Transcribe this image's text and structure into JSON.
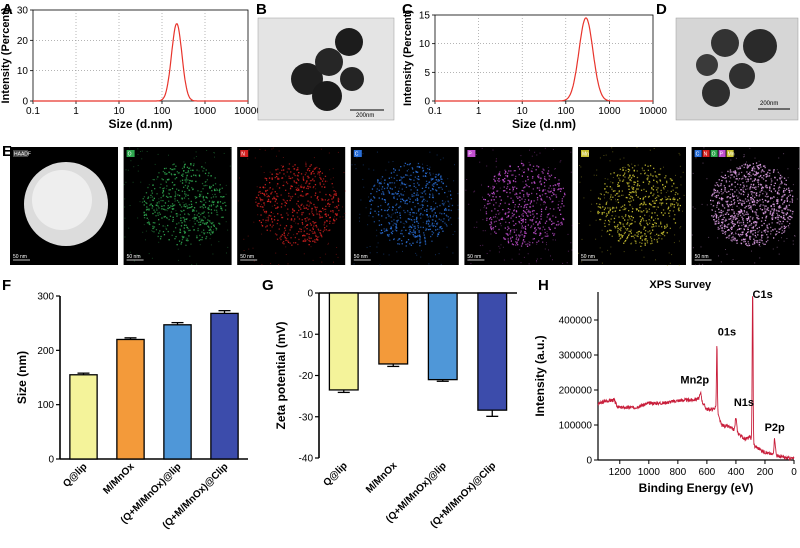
{
  "panels": {
    "A": "A",
    "B": "B",
    "C": "C",
    "D": "D",
    "E": "E",
    "F": "F",
    "G": "G",
    "H": "H"
  },
  "colors": {
    "line": "#e8342c",
    "xps": "#c81d3a",
    "bars": [
      "#f4f39a",
      "#f39a3a",
      "#4f97d8",
      "#3c4cab"
    ]
  },
  "tem": {
    "b_scale": "200nm",
    "d_scale": "200nm"
  },
  "eds": {
    "scale": "50 nm",
    "maps": [
      {
        "label": "HAADF",
        "color": "#bbbbbb"
      },
      {
        "label": "O",
        "color": "#2fa84f"
      },
      {
        "label": "N",
        "color": "#d42020"
      },
      {
        "label": "C",
        "color": "#2a6fd8"
      },
      {
        "label": "P",
        "color": "#c24fd0"
      },
      {
        "label": "Mn",
        "color": "#c8c030"
      },
      {
        "label": "Overlay",
        "color": "#e0a0e8"
      }
    ],
    "overlay_keys": [
      "C",
      "N",
      "O",
      "P",
      "Mn"
    ]
  },
  "chart_data": [
    {
      "id": "A",
      "type": "line",
      "xlabel": "Size (d.nm)",
      "ylabel": "Intensity (Percent)",
      "xscale": "log",
      "xlim": [
        0.1,
        10000
      ],
      "ylim": [
        0,
        30
      ],
      "xticks": [
        "0.1",
        "1",
        "10",
        "100",
        "1000",
        "10000"
      ],
      "yticks": [
        "0",
        "10",
        "20",
        "30"
      ],
      "peak_center": 220,
      "peak_height": 25.5,
      "peak_width_log10": 0.12
    },
    {
      "id": "C",
      "type": "line",
      "xlabel": "Size (d.nm)",
      "ylabel": "Intensity (Percent)",
      "xscale": "log",
      "xlim": [
        0.1,
        10000
      ],
      "ylim": [
        0,
        15
      ],
      "xticks": [
        "0.1",
        "1",
        "10",
        "100",
        "1000",
        "10000"
      ],
      "yticks": [
        "0",
        "5",
        "10",
        "15"
      ],
      "peak_center": 290,
      "peak_height": 14.5,
      "peak_width_log10": 0.16
    },
    {
      "id": "F",
      "type": "bar",
      "ylabel": "Size (nm)",
      "ylim": [
        0,
        300
      ],
      "yticks": [
        "0",
        "100",
        "200",
        "300"
      ],
      "categories": [
        "Q@lip",
        "M/MnOx",
        "(Q+M/MnOx)@lip",
        "(Q+M/MnOx)@Clip"
      ],
      "values": [
        155,
        220,
        247,
        268
      ],
      "errors": [
        3,
        3,
        4,
        5
      ]
    },
    {
      "id": "G",
      "type": "bar",
      "ylabel": "Zeta potential (mV)",
      "ylim": [
        -40,
        0
      ],
      "yticks": [
        "0",
        "-10",
        "-20",
        "-30",
        "-40"
      ],
      "categories": [
        "Q@lip",
        "M/MnOx",
        "(Q+M/MnOx)@lip",
        "(Q+M/MnOx)@Clip"
      ],
      "values": [
        -23.5,
        -17.2,
        -21.0,
        -28.4
      ],
      "errors": [
        0.6,
        0.6,
        0.4,
        1.5
      ]
    },
    {
      "id": "H",
      "type": "line",
      "title": "XPS Survey",
      "xlabel": "Binding Energy (eV)",
      "ylabel": "Intensity (a.u.)",
      "xlim": [
        1350,
        0
      ],
      "ylim": [
        0,
        480000
      ],
      "xticks": [
        "1200",
        "1000",
        "800",
        "600",
        "400",
        "200",
        "0"
      ],
      "yticks": [
        "0",
        "100000",
        "200000",
        "300000",
        "400000"
      ],
      "peaks": [
        {
          "label": "C1s",
          "x": 285,
          "y": 490000
        },
        {
          "label": "01s",
          "x": 531,
          "y": 330000
        },
        {
          "label": "Mn2p",
          "x": 642,
          "y": 190000
        },
        {
          "label": "N1s",
          "x": 400,
          "y": 120000
        },
        {
          "label": "P2p",
          "x": 133,
          "y": 60000
        }
      ],
      "baseline": [
        [
          1350,
          160000
        ],
        [
          1300,
          168000
        ],
        [
          1240,
          172000
        ],
        [
          1220,
          155000
        ],
        [
          1200,
          150000
        ],
        [
          1100,
          150000
        ],
        [
          1000,
          162000
        ],
        [
          900,
          163000
        ],
        [
          800,
          170000
        ],
        [
          700,
          172000
        ],
        [
          650,
          176000
        ],
        [
          600,
          145000
        ],
        [
          560,
          145000
        ],
        [
          540,
          150000
        ],
        [
          500,
          100000
        ],
        [
          450,
          95000
        ],
        [
          420,
          88000
        ],
        [
          380,
          75000
        ],
        [
          340,
          60000
        ],
        [
          300,
          65000
        ],
        [
          270,
          40000
        ],
        [
          200,
          22000
        ],
        [
          150,
          16000
        ],
        [
          100,
          10000
        ],
        [
          50,
          6000
        ],
        [
          0,
          4000
        ]
      ]
    }
  ]
}
